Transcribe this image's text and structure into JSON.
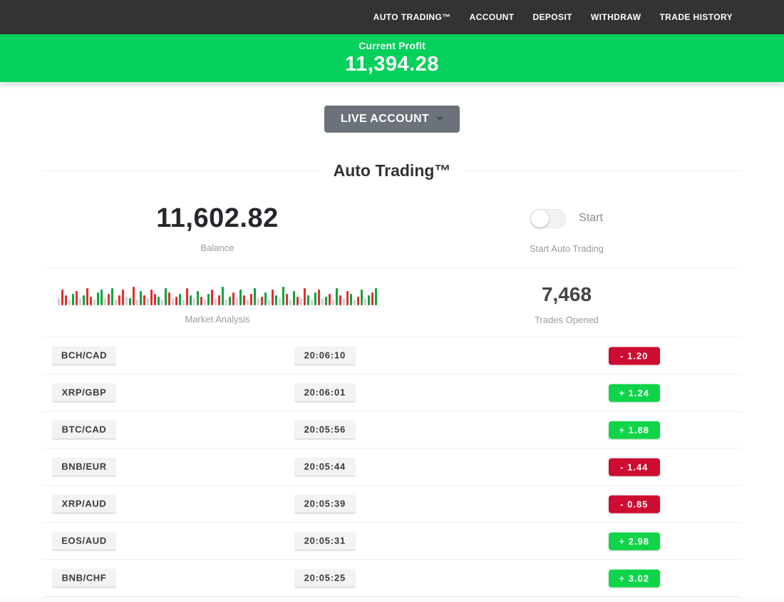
{
  "nav": {
    "items": [
      "AUTO TRADING™",
      "ACCOUNT",
      "DEPOSIT",
      "WITHDRAW",
      "TRADE HISTORY"
    ]
  },
  "profit_banner": {
    "label": "Current Profit",
    "value": "11,394.28"
  },
  "account_selector": {
    "label": "LIVE ACCOUNT"
  },
  "section": {
    "title": "Auto Trading™"
  },
  "stats": {
    "balance": {
      "value": "11,602.82",
      "label": "Balance"
    },
    "auto_trading": {
      "toggle_label": "Start",
      "label": "Start Auto Trading",
      "state": "off"
    },
    "market": {
      "label": "Market Analysis"
    },
    "trades": {
      "value": "7,468",
      "label": "Trades Opened"
    }
  },
  "colors": {
    "banner_green": "#04d05c",
    "badge_green": "#0fd449",
    "badge_red": "#ce0b30",
    "nav_dark": "#333333",
    "bar_green": "#0aa53c",
    "bar_red": "#e02f2f",
    "bar_gray": "#cfcfcf"
  },
  "market_analysis_bars": [
    [
      "g",
      10
    ],
    [
      "r",
      22
    ],
    [
      "r",
      14
    ],
    [
      "g",
      8
    ],
    [
      "G",
      16
    ],
    [
      "r",
      20
    ],
    [
      "g",
      10
    ],
    [
      "G",
      14
    ],
    [
      "r",
      24
    ],
    [
      "r",
      12
    ],
    [
      "g",
      8
    ],
    [
      "G",
      18
    ],
    [
      "G",
      22
    ],
    [
      "g",
      10
    ],
    [
      "r",
      16
    ],
    [
      "G",
      24
    ],
    [
      "g",
      8
    ],
    [
      "r",
      14
    ],
    [
      "r",
      22
    ],
    [
      "g",
      12
    ],
    [
      "G",
      10
    ],
    [
      "r",
      26
    ],
    [
      "g",
      8
    ],
    [
      "G",
      20
    ],
    [
      "r",
      14
    ],
    [
      "g",
      10
    ],
    [
      "r",
      22
    ],
    [
      "r",
      16
    ],
    [
      "G",
      12
    ],
    [
      "g",
      8
    ],
    [
      "G",
      24
    ],
    [
      "r",
      18
    ],
    [
      "g",
      10
    ],
    [
      "r",
      12
    ],
    [
      "G",
      16
    ],
    [
      "g",
      8
    ],
    [
      "r",
      24
    ],
    [
      "G",
      14
    ],
    [
      "g",
      10
    ],
    [
      "G",
      20
    ],
    [
      "r",
      12
    ],
    [
      "g",
      8
    ],
    [
      "G",
      16
    ],
    [
      "r",
      22
    ],
    [
      "g",
      10
    ],
    [
      "r",
      14
    ],
    [
      "G",
      26
    ],
    [
      "g",
      8
    ],
    [
      "G",
      12
    ],
    [
      "r",
      18
    ],
    [
      "g",
      10
    ],
    [
      "G",
      22
    ],
    [
      "r",
      14
    ],
    [
      "g",
      8
    ],
    [
      "r",
      16
    ],
    [
      "G",
      24
    ],
    [
      "g",
      10
    ],
    [
      "r",
      12
    ],
    [
      "G",
      18
    ],
    [
      "g",
      8
    ],
    [
      "r",
      22
    ],
    [
      "G",
      14
    ],
    [
      "g",
      10
    ],
    [
      "G",
      26
    ],
    [
      "r",
      16
    ],
    [
      "g",
      8
    ],
    [
      "G",
      20
    ],
    [
      "r",
      12
    ],
    [
      "g",
      10
    ],
    [
      "r",
      24
    ],
    [
      "G",
      14
    ],
    [
      "g",
      8
    ],
    [
      "G",
      18
    ],
    [
      "r",
      22
    ],
    [
      "g",
      10
    ],
    [
      "G",
      12
    ],
    [
      "r",
      16
    ],
    [
      "g",
      8
    ],
    [
      "G",
      24
    ],
    [
      "r",
      14
    ],
    [
      "g",
      10
    ],
    [
      "r",
      20
    ],
    [
      "G",
      16
    ],
    [
      "g",
      8
    ],
    [
      "r",
      12
    ],
    [
      "G",
      22
    ],
    [
      "g",
      10
    ],
    [
      "G",
      14
    ],
    [
      "r",
      18
    ],
    [
      "G",
      24
    ]
  ],
  "trades_table": {
    "rows": [
      {
        "pair": "BCH/CAD",
        "time": "20:06:10",
        "result": "-  1.20",
        "direction": "loss"
      },
      {
        "pair": "XRP/GBP",
        "time": "20:06:01",
        "result": "+  1.24",
        "direction": "profit"
      },
      {
        "pair": "BTC/CAD",
        "time": "20:05:56",
        "result": "+  1.88",
        "direction": "profit"
      },
      {
        "pair": "BNB/EUR",
        "time": "20:05:44",
        "result": "-  1.44",
        "direction": "loss"
      },
      {
        "pair": "XRP/AUD",
        "time": "20:05:39",
        "result": "-  0.85",
        "direction": "loss"
      },
      {
        "pair": "EOS/AUD",
        "time": "20:05:31",
        "result": "+  2.98",
        "direction": "profit"
      },
      {
        "pair": "BNB/CHF",
        "time": "20:05:25",
        "result": "+  3.02",
        "direction": "profit"
      }
    ]
  }
}
